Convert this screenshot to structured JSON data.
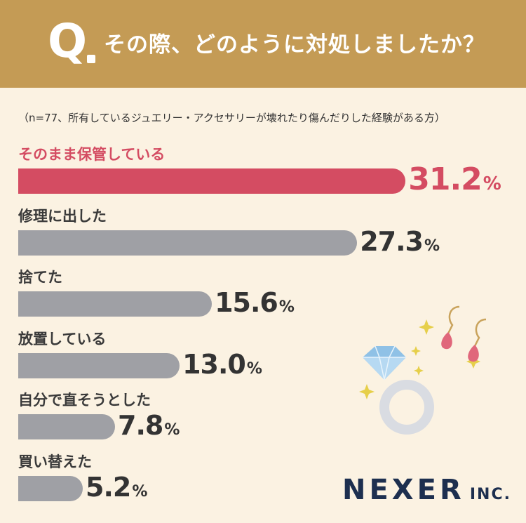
{
  "header": {
    "q_mark": "Q",
    "question": "その際、どのように対処しましたか？"
  },
  "note": "（n=77、所有しているジュエリー・アクセサリーが壊れたり傷んだりした経験がある方）",
  "colors": {
    "highlight": "#d44c62",
    "bar": "#9fa0a5",
    "header": "#c49b55",
    "background": "#fbf2e2"
  },
  "chart_data": {
    "type": "bar",
    "orientation": "horizontal",
    "categories": [
      "そのまま保管している",
      "修理に出した",
      "捨てた",
      "放置している",
      "自分で直そうとした",
      "買い替えた"
    ],
    "values": [
      31.2,
      27.3,
      15.6,
      13.0,
      7.8,
      5.2
    ],
    "value_labels": [
      "31.2",
      "27.3",
      "15.6",
      "13.0",
      "7.8",
      "5.2"
    ],
    "unit": "%",
    "highlight_index": 0
  },
  "brand": {
    "name": "NEXER",
    "suffix": "INC."
  },
  "illustration": [
    "ring-icon",
    "earrings-icon",
    "sparkle-icon"
  ]
}
